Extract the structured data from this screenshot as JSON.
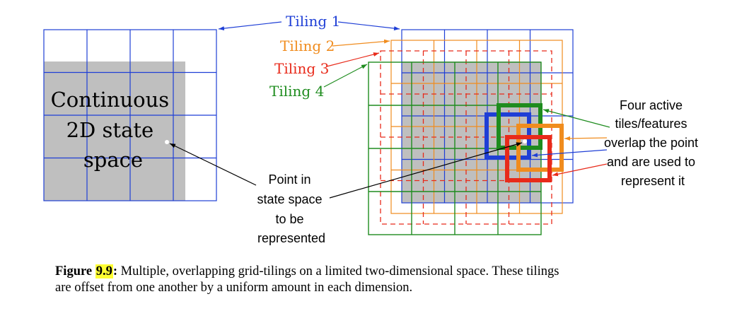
{
  "diagram": {
    "left_label": [
      "Continuous",
      "2D state",
      "space"
    ],
    "tiling_labels": [
      {
        "text": "Tiling 1",
        "color": "#1f3fd6"
      },
      {
        "text": "Tiling 2",
        "color": "#f08c1e"
      },
      {
        "text": "Tiling 3",
        "color": "#e82a1a"
      },
      {
        "text": "Tiling 4",
        "color": "#1e8c1e"
      }
    ],
    "point_label": [
      "Point in",
      "state space",
      "to be",
      "represented"
    ],
    "active_label": [
      "Four active",
      "tiles/features",
      "overlap the point",
      "and are used to",
      "represent it"
    ],
    "colors": {
      "tiling1": "#1f3fd6",
      "tiling2": "#f08c1e",
      "tiling3": "#e82a1a",
      "tiling4": "#1e8c1e",
      "state_space": "#bfbfbf"
    }
  },
  "caption": {
    "label": "Figure",
    "number": "9.9",
    "colon": ":",
    "line1": " Multiple, overlapping grid-tilings on a limited two-dimensional space. These tilings",
    "line2": "are offset from one another by a uniform amount in each dimension."
  }
}
